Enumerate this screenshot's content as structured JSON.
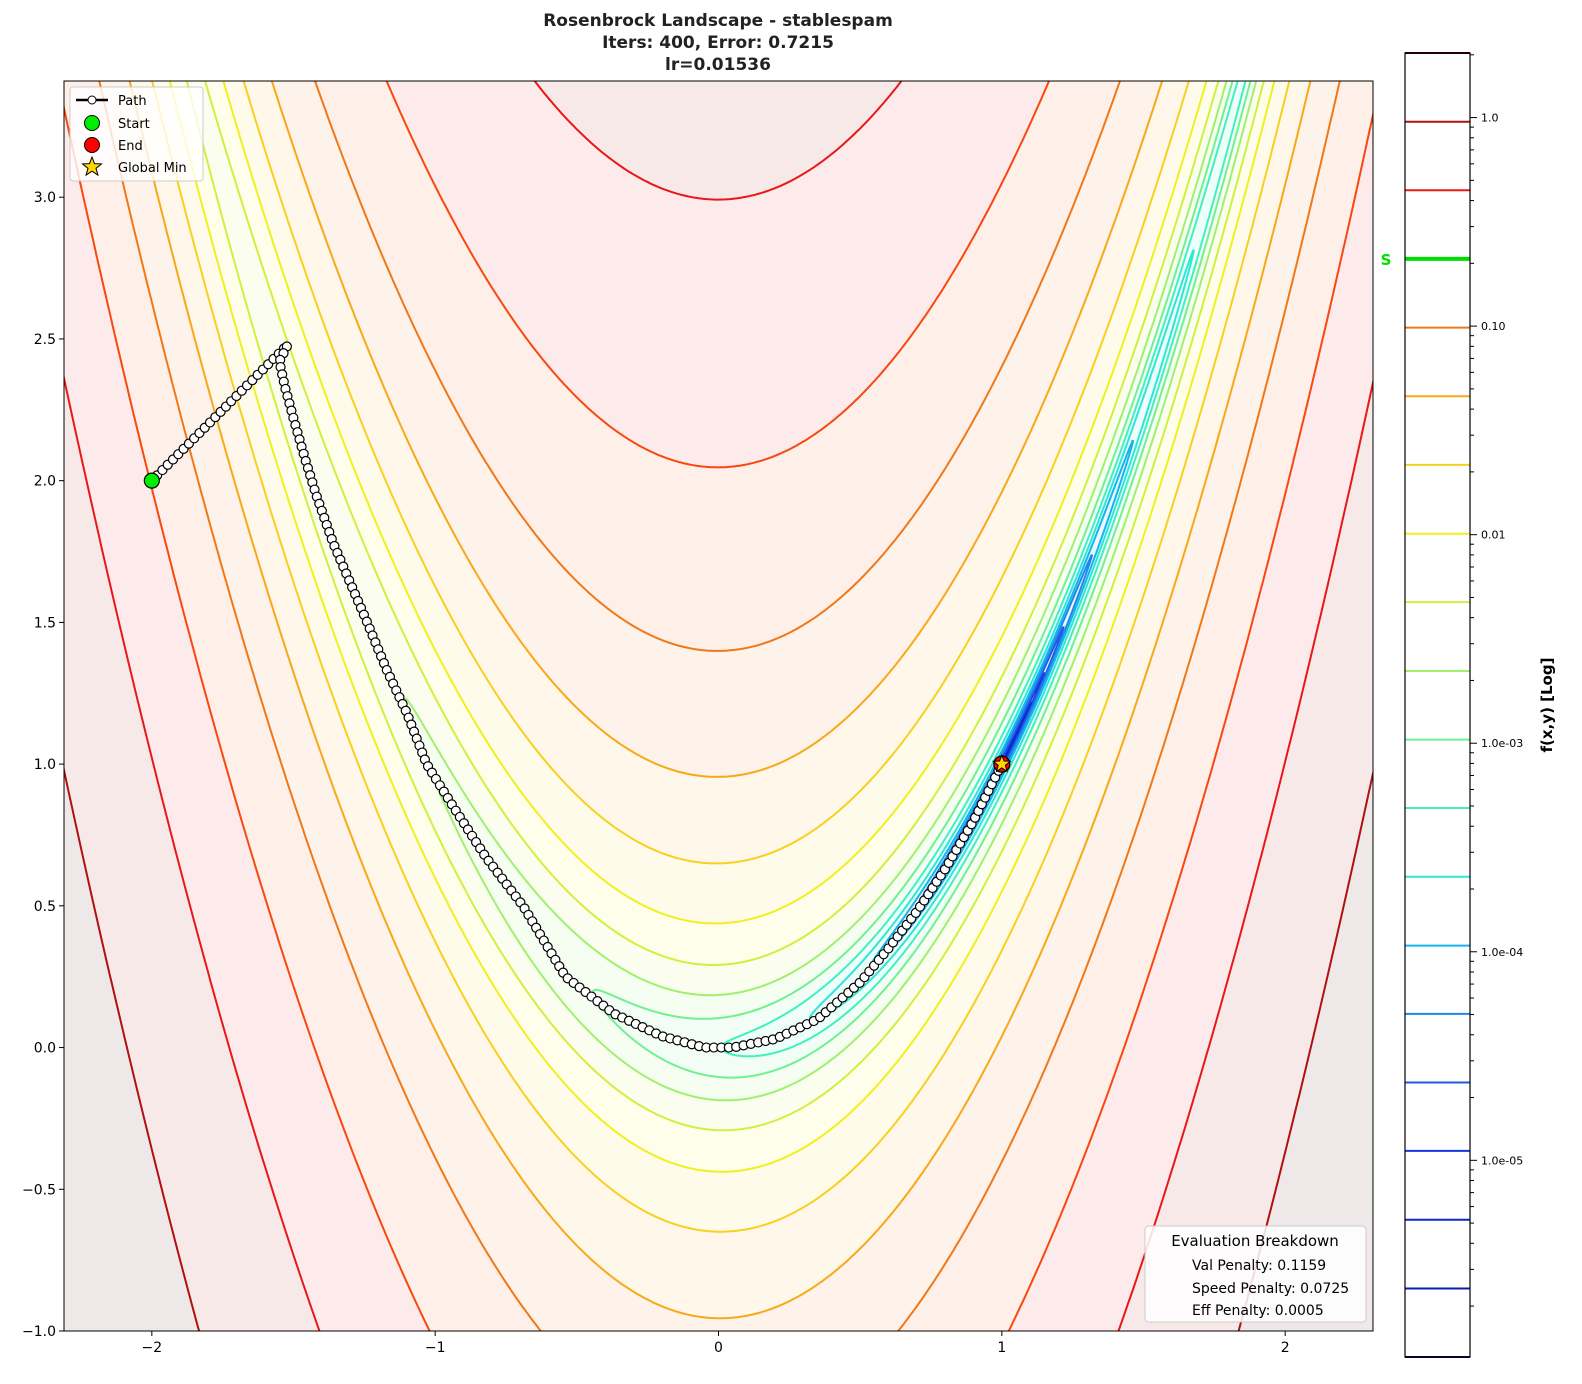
{
  "chart_data": {
    "type": "contour",
    "title": [
      "Rosenbrock Landscape - stablespam",
      "Iters: 400, Error: 0.7215",
      "lr=0.01536"
    ],
    "xlim": [
      -2.31,
      2.31
    ],
    "ylim": [
      -1.0,
      3.41
    ],
    "xticks": [
      -2,
      -1,
      0,
      1,
      2
    ],
    "xtick_labels": [
      "−2",
      "−1",
      "0",
      "1",
      "2"
    ],
    "yticks": [
      -1.0,
      -0.5,
      0.0,
      0.5,
      1.0,
      1.5,
      2.0,
      2.5,
      3.0
    ],
    "ytick_labels": [
      "−1.0",
      "−0.5",
      "0.0",
      "0.5",
      "1.0",
      "1.5",
      "2.0",
      "2.5",
      "3.0"
    ],
    "function": "rosenbrock",
    "contour_levels": [
      1.14e-06,
      2.43e-06,
      5.19e-06,
      1.11e-05,
      2.36e-05,
      5.04e-05,
      0.000107,
      0.000229,
      0.000489,
      0.00104,
      0.00222,
      0.00475,
      0.0101,
      0.0216,
      0.0461,
      0.0984,
      0.21,
      0.448,
      0.955,
      2.04
    ],
    "contour_colors": [
      "#0a0a6e",
      "#0a1ea8",
      "#0f28c8",
      "#1438e0",
      "#1e5ae6",
      "#1e88e8",
      "#14b4f0",
      "#2ce6d8",
      "#40f0c0",
      "#70f090",
      "#a0f070",
      "#d0f040",
      "#f0f020",
      "#f8d020",
      "#f8a818",
      "#f07818",
      "#f84810",
      "#e81818",
      "#b01010",
      "#500000"
    ],
    "colorbar": {
      "label": "f(x,y) [Log]",
      "scale": "log",
      "range": [
        1.14e-06,
        2.04
      ],
      "ticks": [
        1.0,
        0.1,
        0.01,
        0.001,
        0.0001,
        1e-05
      ],
      "tick_labels": [
        "1.0",
        "0.10",
        "0.01",
        "1.0e-03",
        "1.0e-04",
        "1.0e-05"
      ],
      "marker": {
        "label": "S",
        "value": 0.21,
        "color": "#00e000"
      }
    },
    "path": {
      "name": "Path",
      "iterations": 400,
      "waypoints": [
        [
          -2.0,
          2.0
        ],
        [
          -1.52,
          2.48
        ],
        [
          -1.55,
          2.42
        ],
        [
          -1.53,
          2.33
        ],
        [
          -1.5,
          2.22
        ],
        [
          -1.46,
          2.08
        ],
        [
          -1.42,
          1.95
        ],
        [
          -1.36,
          1.78
        ],
        [
          -1.3,
          1.64
        ],
        [
          -1.24,
          1.5
        ],
        [
          -1.17,
          1.33
        ],
        [
          -1.1,
          1.18
        ],
        [
          -1.03,
          1.0
        ],
        [
          -0.93,
          0.84
        ],
        [
          -0.82,
          0.67
        ],
        [
          -0.69,
          0.5
        ],
        [
          -0.54,
          0.25
        ],
        [
          -0.37,
          0.12
        ],
        [
          -0.2,
          0.04
        ],
        [
          -0.05,
          0.0
        ],
        [
          0.05,
          0.0
        ],
        [
          0.2,
          0.03
        ],
        [
          0.35,
          0.1
        ],
        [
          0.5,
          0.23
        ],
        [
          0.6,
          0.35
        ],
        [
          0.7,
          0.48
        ],
        [
          0.8,
          0.63
        ],
        [
          0.9,
          0.8
        ],
        [
          1.0,
          1.0
        ]
      ]
    },
    "start": {
      "name": "Start",
      "x": -2.0,
      "y": 2.0,
      "color": "#00ee00"
    },
    "end": {
      "name": "End",
      "x": 1.0,
      "y": 1.0,
      "color": "#ff0000"
    },
    "global_min": {
      "name": "Global Min",
      "x": 1.0,
      "y": 1.0,
      "color": "#ffd700"
    },
    "legend": [
      "Path",
      "Start",
      "End",
      "Global Min"
    ],
    "legend_position": "upper-left",
    "evaluation": {
      "title": "Evaluation Breakdown",
      "lines": [
        "Val Penalty: 0.1159",
        "Speed Penalty: 0.0725",
        "Eff Penalty: 0.0005"
      ]
    }
  }
}
